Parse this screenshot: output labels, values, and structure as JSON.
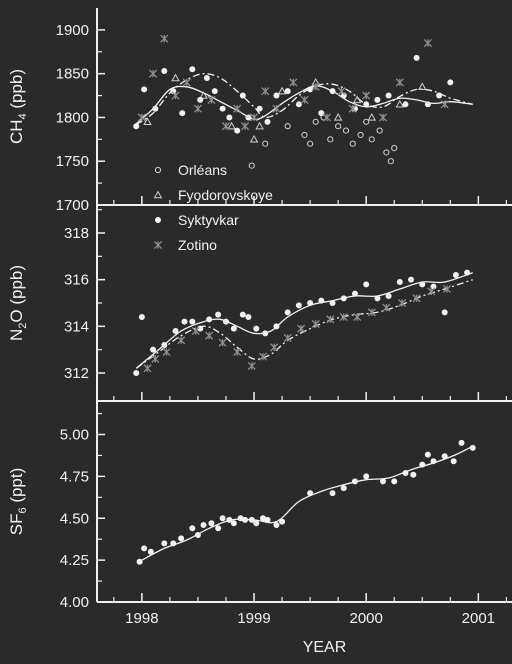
{
  "colors": {
    "background": "#2a2a2a",
    "foreground": "#f2f2f2",
    "zotino": "#8f8f8f",
    "orleans": "#d0d0d0"
  },
  "chart_data": [
    {
      "type": "scatter",
      "panel": "CH4",
      "ylabel_main": "CH",
      "ylabel_sub": "4",
      "ylabel_unit": " (ppb)",
      "xlim": [
        1997.6,
        2001.3
      ],
      "ylim": [
        1700,
        1925
      ],
      "yticks": [
        "1700",
        "1750",
        "1800",
        "1850",
        "1900"
      ],
      "legend_placement": "bottom-left",
      "series": [
        {
          "name": "Orléans",
          "marker": "open-circle",
          "x": [
            1998.98,
            1999.1,
            1999.3,
            1999.45,
            1999.5,
            1999.55,
            1999.62,
            1999.68,
            1999.75,
            1999.82,
            1999.88,
            1999.95,
            2000.0,
            2000.05,
            2000.12,
            2000.18,
            2000.22,
            2000.25
          ],
          "y": [
            1745,
            1770,
            1790,
            1780,
            1770,
            1795,
            1800,
            1775,
            1790,
            1785,
            1770,
            1780,
            1795,
            1775,
            1785,
            1760,
            1750,
            1765
          ]
        },
        {
          "name": "Fyodorovskoye",
          "marker": "open-triangle",
          "x": [
            1998.05,
            1998.3,
            1998.55,
            1998.8,
            1999.0,
            1999.05,
            1999.25,
            1999.55,
            1999.75,
            1999.92,
            2000.05,
            2000.3,
            2000.5
          ],
          "y": [
            1795,
            1845,
            1825,
            1790,
            1775,
            1790,
            1830,
            1840,
            1800,
            1820,
            1800,
            1815,
            1835
          ]
        },
        {
          "name": "Syktyvkar",
          "marker": "filled-circle",
          "x": [
            1997.95,
            1998.02,
            1998.12,
            1998.2,
            1998.28,
            1998.36,
            1998.45,
            1998.52,
            1998.58,
            1998.65,
            1998.72,
            1998.78,
            1998.85,
            1998.9,
            1998.95,
            1999.05,
            1999.12,
            1999.2,
            1999.3,
            1999.4,
            1999.5,
            1999.6,
            1999.7,
            1999.8,
            1999.9,
            2000.0,
            2000.1,
            2000.2,
            2000.35,
            2000.45,
            2000.55,
            2000.65,
            2000.75
          ],
          "y": [
            1790,
            1832,
            1810,
            1853,
            1830,
            1805,
            1855,
            1820,
            1845,
            1830,
            1810,
            1800,
            1785,
            1825,
            1800,
            1810,
            1795,
            1825,
            1830,
            1815,
            1832,
            1805,
            1830,
            1825,
            1810,
            1815,
            1820,
            1825,
            1815,
            1868,
            1815,
            1825,
            1840
          ]
        },
        {
          "name": "Zotino",
          "marker": "asterisk",
          "x": [
            1998.0,
            1998.1,
            1998.2,
            1998.3,
            1998.4,
            1998.5,
            1998.62,
            1998.75,
            1998.85,
            1998.92,
            1999.0,
            1999.1,
            1999.2,
            1999.35,
            1999.45,
            1999.55,
            1999.65,
            1999.78,
            1999.88,
            2000.0,
            2000.15,
            2000.3,
            2000.55,
            2000.7
          ],
          "y": [
            1800,
            1850,
            1890,
            1825,
            1840,
            1810,
            1820,
            1790,
            1810,
            1790,
            1800,
            1830,
            1810,
            1840,
            1820,
            1835,
            1800,
            1830,
            1810,
            1825,
            1800,
            1840,
            1885,
            1815
          ]
        }
      ],
      "curves": [
        {
          "style": "solid",
          "x": [
            1997.95,
            1998.1,
            1998.25,
            1998.4,
            1998.55,
            1998.7,
            1998.85,
            1999.0,
            1999.1,
            1999.25,
            1999.4,
            1999.55,
            1999.7,
            1999.85,
            2000.0,
            2000.15,
            2000.3,
            2000.45,
            2000.6,
            2000.75,
            2000.95
          ],
          "y": [
            1793,
            1810,
            1832,
            1835,
            1828,
            1818,
            1808,
            1798,
            1802,
            1816,
            1828,
            1836,
            1830,
            1818,
            1812,
            1816,
            1822,
            1820,
            1816,
            1818,
            1815
          ]
        },
        {
          "style": "dashdot",
          "x": [
            1997.95,
            1998.1,
            1998.25,
            1998.4,
            1998.55,
            1998.7,
            1998.85,
            1999.0,
            1999.1,
            1999.25,
            1999.4,
            1999.55,
            1999.7,
            1999.85,
            2000.0,
            2000.15,
            2000.3,
            2000.45,
            2000.6,
            2000.75,
            2000.95
          ],
          "y": [
            1792,
            1805,
            1828,
            1843,
            1850,
            1845,
            1830,
            1812,
            1800,
            1808,
            1825,
            1836,
            1838,
            1830,
            1815,
            1812,
            1824,
            1832,
            1830,
            1822,
            1815
          ]
        }
      ]
    },
    {
      "type": "scatter",
      "panel": "N2O",
      "ylabel_main": "N",
      "ylabel_sub": "2",
      "ylabel_unit": "O (ppb)",
      "xlim": [
        1997.6,
        2001.3
      ],
      "ylim": [
        310.8,
        319.2
      ],
      "yticks": [
        "312",
        "314",
        "316",
        "318"
      ],
      "series": [
        {
          "name": "Syktyvkar",
          "marker": "filled-circle",
          "x": [
            1997.95,
            1998.0,
            1998.1,
            1998.2,
            1998.3,
            1998.38,
            1998.45,
            1998.52,
            1998.6,
            1998.68,
            1998.75,
            1998.82,
            1998.9,
            1998.95,
            1999.02,
            1999.1,
            1999.2,
            1999.3,
            1999.4,
            1999.5,
            1999.6,
            1999.7,
            1999.8,
            1999.9,
            2000.0,
            2000.1,
            2000.2,
            2000.3,
            2000.4,
            2000.5,
            2000.6,
            2000.7,
            2000.8,
            2000.9
          ],
          "y": [
            312.0,
            314.4,
            313.0,
            313.2,
            313.8,
            314.2,
            314.2,
            313.9,
            314.3,
            314.5,
            314.2,
            313.9,
            314.5,
            314.4,
            313.9,
            313.7,
            314.0,
            314.6,
            314.9,
            315.0,
            315.1,
            315.0,
            315.2,
            315.4,
            315.8,
            315.2,
            315.3,
            315.9,
            316.0,
            315.8,
            315.7,
            314.6,
            316.2,
            316.3
          ]
        },
        {
          "name": "Zotino",
          "marker": "asterisk",
          "x": [
            1998.05,
            1998.12,
            1998.22,
            1998.35,
            1998.48,
            1998.6,
            1998.72,
            1998.85,
            1998.98,
            1999.08,
            1999.18,
            1999.3,
            1999.42,
            1999.55,
            1999.68,
            1999.8,
            1999.92,
            2000.05,
            2000.18,
            2000.32,
            2000.45,
            2000.58,
            2000.72
          ],
          "y": [
            312.2,
            312.6,
            312.9,
            313.4,
            313.8,
            313.6,
            313.3,
            312.9,
            312.3,
            312.7,
            313.1,
            313.5,
            313.9,
            314.1,
            314.3,
            314.4,
            314.4,
            314.6,
            314.8,
            315.0,
            315.2,
            315.5,
            315.6
          ]
        }
      ],
      "curves": [
        {
          "style": "solid",
          "x": [
            1997.95,
            1998.15,
            1998.35,
            1998.55,
            1998.7,
            1998.85,
            1999.0,
            1999.15,
            1999.3,
            1999.5,
            1999.7,
            1999.9,
            2000.1,
            2000.3,
            2000.5,
            2000.7,
            2000.95
          ],
          "y": [
            312.2,
            313.0,
            313.8,
            314.2,
            314.3,
            314.0,
            313.7,
            313.8,
            314.4,
            314.9,
            315.1,
            315.3,
            315.3,
            315.6,
            315.9,
            315.9,
            316.3
          ]
        },
        {
          "style": "dashdot",
          "x": [
            1997.95,
            1998.15,
            1998.35,
            1998.55,
            1998.7,
            1998.85,
            1999.0,
            1999.15,
            1999.3,
            1999.5,
            1999.7,
            1999.9,
            2000.1,
            2000.3,
            2000.5,
            2000.7,
            2000.95
          ],
          "y": [
            312.2,
            312.9,
            313.6,
            314.0,
            313.7,
            313.1,
            312.6,
            312.8,
            313.4,
            313.9,
            314.3,
            314.5,
            314.6,
            314.9,
            315.3,
            315.6,
            316.0
          ]
        }
      ]
    },
    {
      "type": "scatter",
      "panel": "SF6",
      "ylabel_main": "SF",
      "ylabel_sub": "6",
      "ylabel_unit": " (ppt)",
      "xlabel": "YEAR",
      "xticks": [
        "1998",
        "1999",
        "2000",
        "2001"
      ],
      "xlim": [
        1997.6,
        2001.3
      ],
      "ylim": [
        4.0,
        5.2
      ],
      "yticks": [
        "4.00",
        "4.25",
        "4.50",
        "4.75",
        "5.00"
      ],
      "series": [
        {
          "name": "Syktyvkar",
          "marker": "filled-circle",
          "x": [
            1997.98,
            1998.02,
            1998.08,
            1998.2,
            1998.28,
            1998.35,
            1998.45,
            1998.5,
            1998.55,
            1998.62,
            1998.68,
            1998.72,
            1998.78,
            1998.82,
            1998.88,
            1998.92,
            1998.98,
            1999.02,
            1999.08,
            1999.12,
            1999.2,
            1999.25,
            1999.5,
            1999.7,
            1999.8,
            1999.9,
            2000.0,
            2000.15,
            2000.25,
            2000.35,
            2000.42,
            2000.5,
            2000.55,
            2000.6,
            2000.7,
            2000.78,
            2000.85,
            2000.95
          ],
          "y": [
            4.24,
            4.32,
            4.3,
            4.35,
            4.35,
            4.38,
            4.44,
            4.4,
            4.46,
            4.47,
            4.44,
            4.5,
            4.49,
            4.47,
            4.5,
            4.49,
            4.49,
            4.47,
            4.5,
            4.49,
            4.46,
            4.48,
            4.65,
            4.65,
            4.68,
            4.72,
            4.75,
            4.72,
            4.72,
            4.77,
            4.76,
            4.82,
            4.88,
            4.84,
            4.87,
            4.84,
            4.95,
            4.92
          ]
        }
      ],
      "curves": [
        {
          "style": "solid",
          "x": [
            1998.0,
            1998.2,
            1998.4,
            1998.6,
            1998.8,
            1999.0,
            1999.2,
            1999.4,
            1999.6,
            1999.8,
            2000.0,
            2000.2,
            2000.4,
            2000.6,
            2000.8,
            2000.95
          ],
          "y": [
            4.25,
            4.32,
            4.37,
            4.44,
            4.49,
            4.49,
            4.48,
            4.6,
            4.66,
            4.7,
            4.73,
            4.74,
            4.79,
            4.83,
            4.88,
            4.93
          ]
        }
      ]
    }
  ]
}
